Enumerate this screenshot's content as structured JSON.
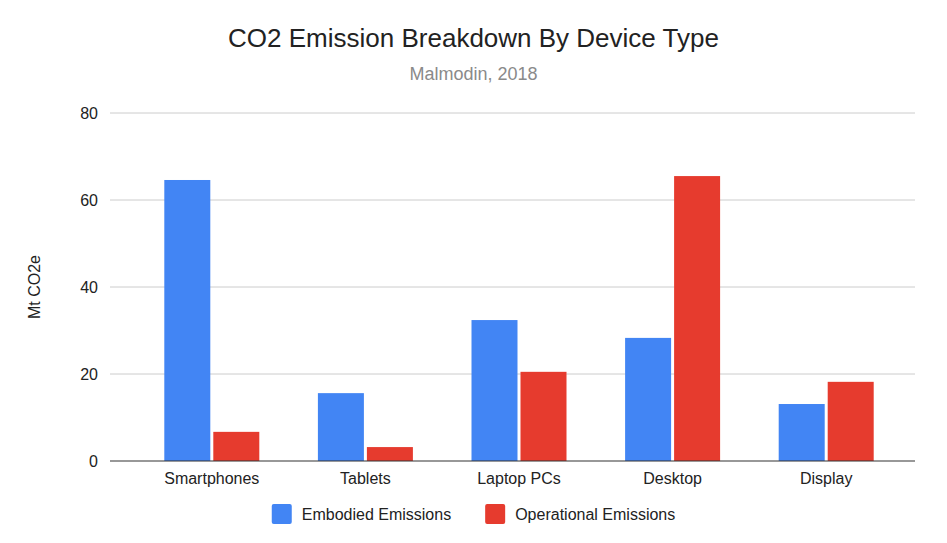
{
  "chart_data": {
    "type": "bar",
    "title": "CO2 Emission Breakdown By Device Type",
    "subtitle": "Malmodin, 2018",
    "ylabel": "Mt CO2e",
    "categories": [
      "Smartphones",
      "Tablets",
      "Laptop PCs",
      "Desktop",
      "Display"
    ],
    "series": [
      {
        "name": "Embodied Emissions",
        "color": "#4285f4",
        "values": [
          64.6,
          15.6,
          32.4,
          28.3,
          13.1
        ]
      },
      {
        "name": "Operational Emissions",
        "color": "#e63b2e",
        "values": [
          6.7,
          3.2,
          20.5,
          65.5,
          18.2
        ]
      }
    ],
    "ylim": [
      0,
      80
    ],
    "yticks": [
      0,
      20,
      40,
      60,
      80
    ],
    "grid": true,
    "legend": "bottom"
  }
}
